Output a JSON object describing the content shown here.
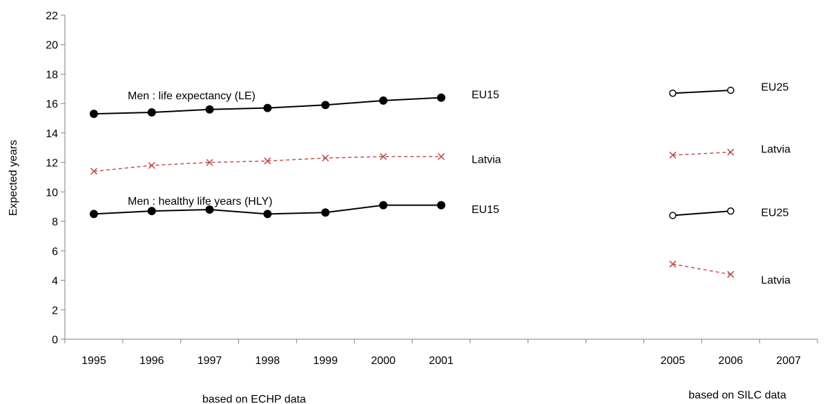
{
  "chart_data": {
    "type": "line",
    "ylabel": "Expected years",
    "ylim": [
      0,
      22
    ],
    "y_ticks": [
      0,
      2,
      4,
      6,
      8,
      10,
      12,
      14,
      16,
      18,
      20,
      22
    ],
    "x_categories": [
      "1995",
      "1996",
      "1997",
      "1998",
      "1999",
      "2000",
      "2001",
      "",
      "",
      "",
      "2005",
      "2006",
      "2007"
    ],
    "x_group_labels": [
      "based on ECHP data",
      "based on SILC data"
    ],
    "grid": false,
    "annotations": [
      "Men :  life expectancy (LE)",
      "Men : healthy life years (HLY)"
    ],
    "series": [
      {
        "name": "EU15",
        "label_y": 16.6,
        "color": "#000000",
        "dash": false,
        "marker": "filled-circle",
        "x": [
          "1995",
          "1996",
          "1997",
          "1998",
          "1999",
          "2000",
          "2001"
        ],
        "values": [
          15.3,
          15.4,
          15.6,
          15.7,
          15.9,
          16.2,
          16.4
        ]
      },
      {
        "name": "Latvia",
        "label_y": 12.2,
        "color": "#c0504d",
        "dash": true,
        "marker": "x",
        "x": [
          "1995",
          "1996",
          "1997",
          "1998",
          "1999",
          "2000",
          "2001"
        ],
        "values": [
          11.4,
          11.8,
          12.0,
          12.1,
          12.3,
          12.4,
          12.4
        ]
      },
      {
        "name": "EU15",
        "label_y": 8.8,
        "color": "#000000",
        "dash": false,
        "marker": "filled-circle",
        "x": [
          "1995",
          "1996",
          "1997",
          "1998",
          "1999",
          "2000",
          "2001"
        ],
        "values": [
          8.5,
          8.7,
          8.8,
          8.5,
          8.6,
          9.1,
          9.1
        ]
      },
      {
        "name": "EU25",
        "label_y": 17.1,
        "color": "#000000",
        "dash": false,
        "marker": "open-circle",
        "x": [
          "2005",
          "2006"
        ],
        "values": [
          16.7,
          16.9
        ]
      },
      {
        "name": "Latvia",
        "label_y": 12.9,
        "color": "#c0504d",
        "dash": true,
        "marker": "x",
        "x": [
          "2005",
          "2006"
        ],
        "values": [
          12.5,
          12.7
        ]
      },
      {
        "name": "EU25",
        "label_y": 8.6,
        "color": "#000000",
        "dash": false,
        "marker": "open-circle",
        "x": [
          "2005",
          "2006"
        ],
        "values": [
          8.4,
          8.7
        ]
      },
      {
        "name": "Latvia",
        "label_y": 4.0,
        "color": "#c0504d",
        "dash": true,
        "marker": "x",
        "x": [
          "2005",
          "2006"
        ],
        "values": [
          5.1,
          4.4
        ]
      }
    ]
  }
}
